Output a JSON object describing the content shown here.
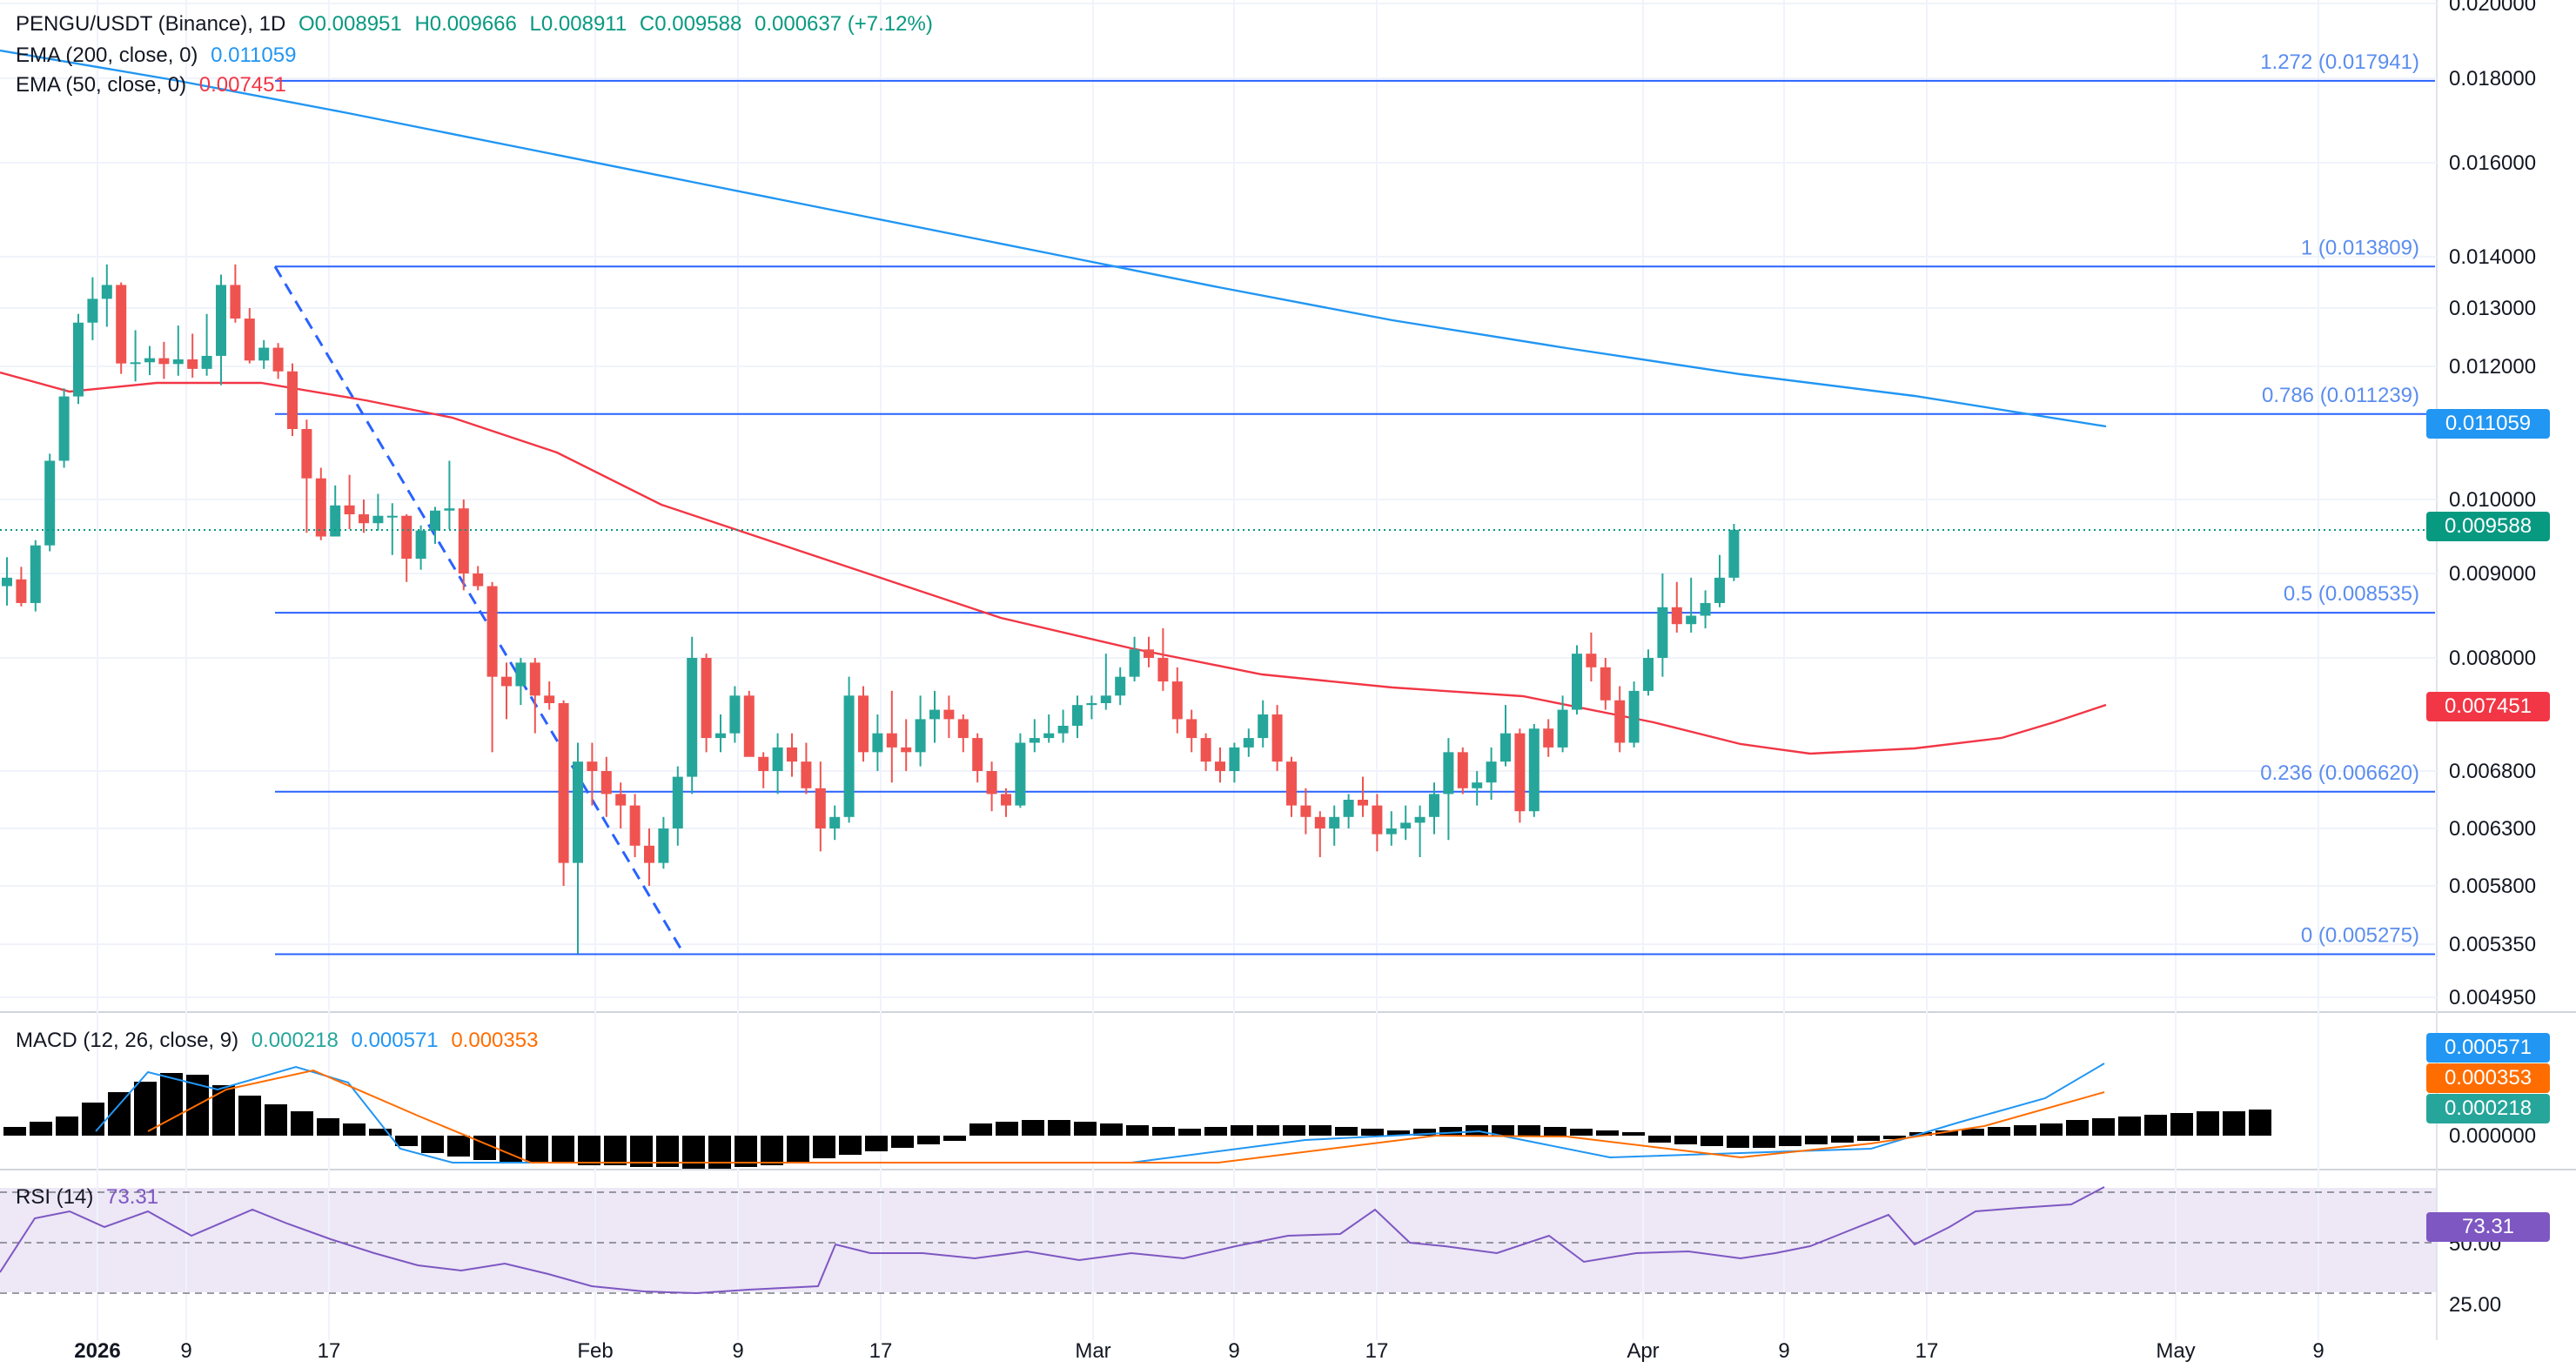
{
  "legend": {
    "symbol": "PENGU/USDT (Binance), 1D",
    "open": "O0.008951",
    "high": "H0.009666",
    "low": "L0.008911",
    "close": "C0.009588",
    "change": "0.000637 (+7.12%)",
    "ema200_label": "EMA (200, close, 0)",
    "ema200_value": "0.011059",
    "ema50_label": "EMA (50, close, 0)",
    "ema50_value": "0.007451",
    "macd_label": "MACD (12, 26, close, 9)",
    "macd_hist": "0.000218",
    "macd_line": "0.000571",
    "macd_signal": "0.000353",
    "rsi_label": "RSI (14)",
    "rsi_value": "73.31"
  },
  "price_tags": {
    "ema200": "0.011059",
    "price": "0.009588",
    "ema50": "0.007451",
    "macd_line": "0.000571",
    "macd_signal": "0.000353",
    "macd_hist": "0.000218",
    "rsi": "73.31"
  },
  "colors": {
    "up": "#26a69a",
    "down": "#ef5350",
    "ema200": "#2196f3",
    "ema50": "#f23645",
    "fib": "#2962ff",
    "rsi": "#7e57c2",
    "signal": "#ff6d00"
  },
  "chart_data": {
    "type": "candlestick",
    "price_axis_ticks": [
      "0.020000",
      "0.018000",
      "0.016000",
      "0.014000",
      "0.013000",
      "0.012000",
      "0.010000",
      "0.009000",
      "0.008000",
      "0.006800",
      "0.006300",
      "0.005800",
      "0.005350",
      "0.004950"
    ],
    "macd_axis_ticks": [
      "0.000000"
    ],
    "rsi_axis_ticks": [
      "50.00",
      "25.00"
    ],
    "x_ticks": [
      {
        "label": "2026",
        "bold": true
      },
      {
        "label": "9"
      },
      {
        "label": "17"
      },
      {
        "label": "Feb"
      },
      {
        "label": "9"
      },
      {
        "label": "17"
      },
      {
        "label": "Mar"
      },
      {
        "label": "9"
      },
      {
        "label": "17"
      },
      {
        "label": "Apr"
      },
      {
        "label": "9"
      },
      {
        "label": "17"
      },
      {
        "label": "May"
      },
      {
        "label": "9"
      }
    ],
    "fib_levels": [
      {
        "label": "1.272 (0.017941)",
        "value": 0.017941
      },
      {
        "label": "1 (0.013809)",
        "value": 0.013809
      },
      {
        "label": "0.786 (0.011239)",
        "value": 0.011239
      },
      {
        "label": "0.5 (0.008535)",
        "value": 0.008535
      },
      {
        "label": "0.236 (0.006620)",
        "value": 0.00662
      },
      {
        "label": "0 (0.005275)",
        "value": 0.005275
      }
    ],
    "candles": [
      {
        "o": 0.00885,
        "h": 0.00922,
        "l": 0.00862,
        "c": 0.00895
      },
      {
        "o": 0.00893,
        "h": 0.00909,
        "l": 0.00861,
        "c": 0.00865
      },
      {
        "o": 0.00865,
        "h": 0.00945,
        "l": 0.00855,
        "c": 0.00938
      },
      {
        "o": 0.00938,
        "h": 0.01065,
        "l": 0.0093,
        "c": 0.01055
      },
      {
        "o": 0.01055,
        "h": 0.01165,
        "l": 0.01045,
        "c": 0.01152
      },
      {
        "o": 0.01152,
        "h": 0.0129,
        "l": 0.0114,
        "c": 0.01275
      },
      {
        "o": 0.01275,
        "h": 0.0136,
        "l": 0.01245,
        "c": 0.01318
      },
      {
        "o": 0.01318,
        "h": 0.01385,
        "l": 0.01268,
        "c": 0.01345
      },
      {
        "o": 0.01345,
        "h": 0.0135,
        "l": 0.01188,
        "c": 0.01205
      },
      {
        "o": 0.01205,
        "h": 0.01262,
        "l": 0.01176,
        "c": 0.01207
      },
      {
        "o": 0.01207,
        "h": 0.01235,
        "l": 0.01186,
        "c": 0.01214
      },
      {
        "o": 0.01214,
        "h": 0.01242,
        "l": 0.0118,
        "c": 0.01204
      },
      {
        "o": 0.01204,
        "h": 0.0127,
        "l": 0.01185,
        "c": 0.01212
      },
      {
        "o": 0.01212,
        "h": 0.01256,
        "l": 0.01182,
        "c": 0.01196
      },
      {
        "o": 0.01196,
        "h": 0.0129,
        "l": 0.01185,
        "c": 0.01218
      },
      {
        "o": 0.01218,
        "h": 0.01365,
        "l": 0.0117,
        "c": 0.01345
      },
      {
        "o": 0.01345,
        "h": 0.01385,
        "l": 0.01275,
        "c": 0.01282
      },
      {
        "o": 0.01282,
        "h": 0.013,
        "l": 0.01205,
        "c": 0.0121
      },
      {
        "o": 0.0121,
        "h": 0.01245,
        "l": 0.01196,
        "c": 0.01232
      },
      {
        "o": 0.01232,
        "h": 0.0124,
        "l": 0.0118,
        "c": 0.01192
      },
      {
        "o": 0.01192,
        "h": 0.01205,
        "l": 0.0109,
        "c": 0.011
      },
      {
        "o": 0.011,
        "h": 0.01115,
        "l": 0.00955,
        "c": 0.0103
      },
      {
        "o": 0.0103,
        "h": 0.01045,
        "l": 0.00945,
        "c": 0.0095
      },
      {
        "o": 0.0095,
        "h": 0.0102,
        "l": 0.0095,
        "c": 0.00992
      },
      {
        "o": 0.00992,
        "h": 0.01035,
        "l": 0.0096,
        "c": 0.0098
      },
      {
        "o": 0.0098,
        "h": 0.01,
        "l": 0.00955,
        "c": 0.00968
      },
      {
        "o": 0.00968,
        "h": 0.01008,
        "l": 0.00958,
        "c": 0.00978
      },
      {
        "o": 0.00978,
        "h": 0.00995,
        "l": 0.00925,
        "c": 0.00978
      },
      {
        "o": 0.00978,
        "h": 0.0098,
        "l": 0.0089,
        "c": 0.0092
      },
      {
        "o": 0.0092,
        "h": 0.00965,
        "l": 0.00905,
        "c": 0.00958
      },
      {
        "o": 0.00958,
        "h": 0.0099,
        "l": 0.0094,
        "c": 0.00985
      },
      {
        "o": 0.00985,
        "h": 0.01055,
        "l": 0.0096,
        "c": 0.00988
      },
      {
        "o": 0.00988,
        "h": 0.01,
        "l": 0.0088,
        "c": 0.009
      },
      {
        "o": 0.009,
        "h": 0.0091,
        "l": 0.0088,
        "c": 0.00885
      },
      {
        "o": 0.00885,
        "h": 0.0089,
        "l": 0.007,
        "c": 0.0078
      },
      {
        "o": 0.0078,
        "h": 0.00795,
        "l": 0.00735,
        "c": 0.0077
      },
      {
        "o": 0.0077,
        "h": 0.008,
        "l": 0.0075,
        "c": 0.00795
      },
      {
        "o": 0.00795,
        "h": 0.008,
        "l": 0.0072,
        "c": 0.0076
      },
      {
        "o": 0.0076,
        "h": 0.00775,
        "l": 0.00745,
        "c": 0.00752
      },
      {
        "o": 0.00752,
        "h": 0.00755,
        "l": 0.0058,
        "c": 0.006
      },
      {
        "o": 0.006,
        "h": 0.0071,
        "l": 0.00528,
        "c": 0.0069
      },
      {
        "o": 0.0069,
        "h": 0.0071,
        "l": 0.0065,
        "c": 0.0068
      },
      {
        "o": 0.0068,
        "h": 0.00695,
        "l": 0.0064,
        "c": 0.0066
      },
      {
        "o": 0.0066,
        "h": 0.0067,
        "l": 0.0063,
        "c": 0.0065
      },
      {
        "o": 0.0065,
        "h": 0.0066,
        "l": 0.00605,
        "c": 0.00615
      },
      {
        "o": 0.00615,
        "h": 0.0063,
        "l": 0.0058,
        "c": 0.006
      },
      {
        "o": 0.006,
        "h": 0.0064,
        "l": 0.00595,
        "c": 0.0063
      },
      {
        "o": 0.0063,
        "h": 0.00685,
        "l": 0.00615,
        "c": 0.00675
      },
      {
        "o": 0.00675,
        "h": 0.00825,
        "l": 0.0066,
        "c": 0.008
      },
      {
        "o": 0.008,
        "h": 0.00805,
        "l": 0.007,
        "c": 0.00715
      },
      {
        "o": 0.00715,
        "h": 0.0074,
        "l": 0.007,
        "c": 0.0072
      },
      {
        "o": 0.0072,
        "h": 0.0077,
        "l": 0.0071,
        "c": 0.0076
      },
      {
        "o": 0.0076,
        "h": 0.00765,
        "l": 0.007,
        "c": 0.00695
      },
      {
        "o": 0.00695,
        "h": 0.007,
        "l": 0.00665,
        "c": 0.0068
      },
      {
        "o": 0.0068,
        "h": 0.0072,
        "l": 0.0066,
        "c": 0.00705
      },
      {
        "o": 0.00705,
        "h": 0.0072,
        "l": 0.00675,
        "c": 0.0069
      },
      {
        "o": 0.0069,
        "h": 0.0071,
        "l": 0.0066,
        "c": 0.00665
      },
      {
        "o": 0.00665,
        "h": 0.0069,
        "l": 0.0061,
        "c": 0.0063
      },
      {
        "o": 0.0063,
        "h": 0.0065,
        "l": 0.0062,
        "c": 0.0064
      },
      {
        "o": 0.0064,
        "h": 0.0078,
        "l": 0.00635,
        "c": 0.0076
      },
      {
        "o": 0.0076,
        "h": 0.0077,
        "l": 0.0069,
        "c": 0.007
      },
      {
        "o": 0.007,
        "h": 0.0074,
        "l": 0.0068,
        "c": 0.0072
      },
      {
        "o": 0.0072,
        "h": 0.00765,
        "l": 0.0067,
        "c": 0.00705
      },
      {
        "o": 0.00705,
        "h": 0.00735,
        "l": 0.0068,
        "c": 0.007
      },
      {
        "o": 0.007,
        "h": 0.0076,
        "l": 0.00685,
        "c": 0.00735
      },
      {
        "o": 0.00735,
        "h": 0.00765,
        "l": 0.0071,
        "c": 0.00745
      },
      {
        "o": 0.00745,
        "h": 0.0076,
        "l": 0.00715,
        "c": 0.00735
      },
      {
        "o": 0.00735,
        "h": 0.0074,
        "l": 0.007,
        "c": 0.00715
      },
      {
        "o": 0.00715,
        "h": 0.0072,
        "l": 0.0067,
        "c": 0.0068
      },
      {
        "o": 0.0068,
        "h": 0.0069,
        "l": 0.00645,
        "c": 0.0066
      },
      {
        "o": 0.0066,
        "h": 0.00665,
        "l": 0.0064,
        "c": 0.0065
      },
      {
        "o": 0.0065,
        "h": 0.0072,
        "l": 0.00648,
        "c": 0.0071
      },
      {
        "o": 0.0071,
        "h": 0.00735,
        "l": 0.007,
        "c": 0.00715
      },
      {
        "o": 0.00715,
        "h": 0.0074,
        "l": 0.0071,
        "c": 0.0072
      },
      {
        "o": 0.0072,
        "h": 0.00745,
        "l": 0.0071,
        "c": 0.00728
      },
      {
        "o": 0.00728,
        "h": 0.0076,
        "l": 0.00715,
        "c": 0.0075
      },
      {
        "o": 0.0075,
        "h": 0.0076,
        "l": 0.00735,
        "c": 0.00752
      },
      {
        "o": 0.00752,
        "h": 0.00805,
        "l": 0.00745,
        "c": 0.0076
      },
      {
        "o": 0.0076,
        "h": 0.0079,
        "l": 0.0075,
        "c": 0.0078
      },
      {
        "o": 0.0078,
        "h": 0.00825,
        "l": 0.00775,
        "c": 0.0081
      },
      {
        "o": 0.0081,
        "h": 0.00825,
        "l": 0.0079,
        "c": 0.008
      },
      {
        "o": 0.008,
        "h": 0.00835,
        "l": 0.00765,
        "c": 0.00775
      },
      {
        "o": 0.00775,
        "h": 0.0079,
        "l": 0.0072,
        "c": 0.00735
      },
      {
        "o": 0.00735,
        "h": 0.00745,
        "l": 0.007,
        "c": 0.00715
      },
      {
        "o": 0.00715,
        "h": 0.0072,
        "l": 0.0068,
        "c": 0.0069
      },
      {
        "o": 0.0069,
        "h": 0.00705,
        "l": 0.0067,
        "c": 0.0068
      },
      {
        "o": 0.0068,
        "h": 0.0071,
        "l": 0.0067,
        "c": 0.00705
      },
      {
        "o": 0.00705,
        "h": 0.00725,
        "l": 0.00695,
        "c": 0.00715
      },
      {
        "o": 0.00715,
        "h": 0.00755,
        "l": 0.00705,
        "c": 0.0074
      },
      {
        "o": 0.0074,
        "h": 0.0075,
        "l": 0.0068,
        "c": 0.0069
      },
      {
        "o": 0.0069,
        "h": 0.00695,
        "l": 0.0064,
        "c": 0.0065
      },
      {
        "o": 0.0065,
        "h": 0.00665,
        "l": 0.00625,
        "c": 0.0064
      },
      {
        "o": 0.0064,
        "h": 0.00645,
        "l": 0.00605,
        "c": 0.0063
      },
      {
        "o": 0.0063,
        "h": 0.0065,
        "l": 0.00615,
        "c": 0.0064
      },
      {
        "o": 0.0064,
        "h": 0.0066,
        "l": 0.0063,
        "c": 0.00655
      },
      {
        "o": 0.00655,
        "h": 0.00675,
        "l": 0.0064,
        "c": 0.0065
      },
      {
        "o": 0.0065,
        "h": 0.0066,
        "l": 0.0061,
        "c": 0.00625
      },
      {
        "o": 0.00625,
        "h": 0.00645,
        "l": 0.00615,
        "c": 0.0063
      },
      {
        "o": 0.0063,
        "h": 0.0065,
        "l": 0.0062,
        "c": 0.00635
      },
      {
        "o": 0.00635,
        "h": 0.0065,
        "l": 0.00605,
        "c": 0.0064
      },
      {
        "o": 0.0064,
        "h": 0.0067,
        "l": 0.00625,
        "c": 0.0066
      },
      {
        "o": 0.0066,
        "h": 0.00715,
        "l": 0.0062,
        "c": 0.007
      },
      {
        "o": 0.007,
        "h": 0.00705,
        "l": 0.0066,
        "c": 0.00665
      },
      {
        "o": 0.00665,
        "h": 0.0068,
        "l": 0.0065,
        "c": 0.0067
      },
      {
        "o": 0.0067,
        "h": 0.00705,
        "l": 0.00655,
        "c": 0.0069
      },
      {
        "o": 0.0069,
        "h": 0.0075,
        "l": 0.00685,
        "c": 0.0072
      },
      {
        "o": 0.0072,
        "h": 0.00725,
        "l": 0.00635,
        "c": 0.00645
      },
      {
        "o": 0.00645,
        "h": 0.0073,
        "l": 0.0064,
        "c": 0.00725
      },
      {
        "o": 0.00725,
        "h": 0.00735,
        "l": 0.00695,
        "c": 0.00705
      },
      {
        "o": 0.00705,
        "h": 0.0076,
        "l": 0.007,
        "c": 0.00745
      },
      {
        "o": 0.00745,
        "h": 0.00815,
        "l": 0.0074,
        "c": 0.00805
      },
      {
        "o": 0.00805,
        "h": 0.0083,
        "l": 0.00775,
        "c": 0.0079
      },
      {
        "o": 0.0079,
        "h": 0.008,
        "l": 0.00745,
        "c": 0.00755
      },
      {
        "o": 0.00755,
        "h": 0.0077,
        "l": 0.007,
        "c": 0.0071
      },
      {
        "o": 0.0071,
        "h": 0.00775,
        "l": 0.00705,
        "c": 0.00765
      },
      {
        "o": 0.00765,
        "h": 0.0081,
        "l": 0.0076,
        "c": 0.008
      },
      {
        "o": 0.008,
        "h": 0.009,
        "l": 0.0078,
        "c": 0.0086
      },
      {
        "o": 0.0086,
        "h": 0.0089,
        "l": 0.0083,
        "c": 0.0084
      },
      {
        "o": 0.0084,
        "h": 0.00895,
        "l": 0.0083,
        "c": 0.0085
      },
      {
        "o": 0.0085,
        "h": 0.0088,
        "l": 0.00835,
        "c": 0.00865
      },
      {
        "o": 0.00865,
        "h": 0.00925,
        "l": 0.0086,
        "c": 0.00895
      },
      {
        "o": 0.00895,
        "h": 0.00967,
        "l": 0.00891,
        "c": 0.00959
      }
    ]
  }
}
